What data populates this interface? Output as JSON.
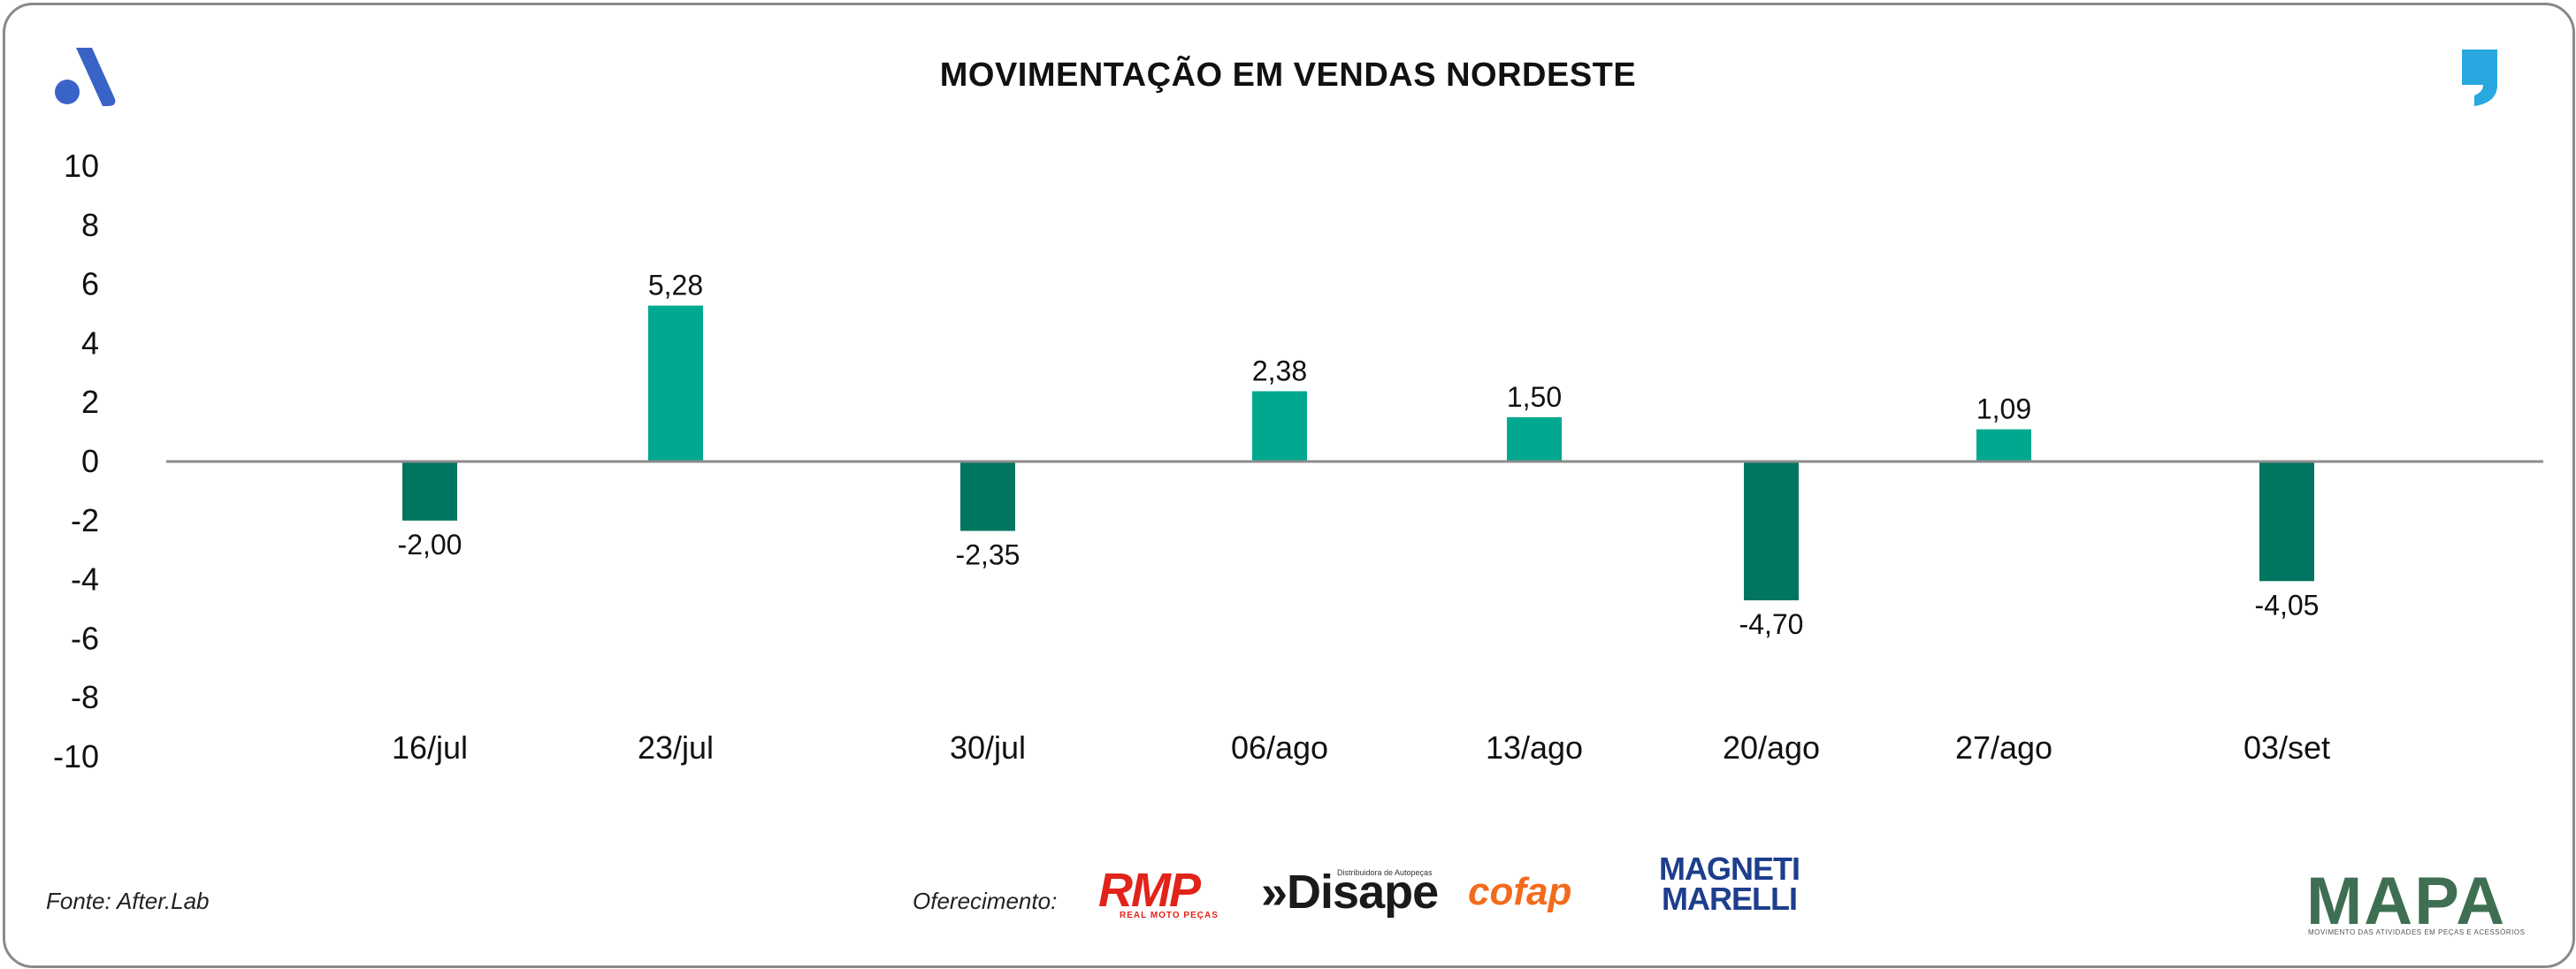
{
  "header": {
    "title": "MOVIMENTAÇÃO EM VENDAS NORDESTE"
  },
  "chart_data": {
    "type": "bar",
    "title": "MOVIMENTAÇÃO EM VENDAS NORDESTE",
    "categories": [
      "16/jul",
      "23/jul",
      "30/jul",
      "06/ago",
      "13/ago",
      "20/ago",
      "27/ago",
      "03/set"
    ],
    "values": [
      -2.0,
      5.28,
      -2.35,
      2.38,
      1.5,
      -4.7,
      1.09,
      -4.05
    ],
    "value_labels": [
      "-2,00",
      "5,28",
      "-2,35",
      "2,38",
      "1,50",
      "-4,70",
      "1,09",
      "-4,05"
    ],
    "ylim": [
      -10,
      10
    ],
    "yticks": [
      10,
      8,
      6,
      4,
      2,
      0,
      -2,
      -4,
      -6,
      -8,
      -10
    ],
    "xlabel": "",
    "ylabel": "",
    "grid": false,
    "colors": {
      "positive": "#00a88f",
      "negative": "#00755f",
      "zero_line": "#8c8c8c"
    }
  },
  "footer": {
    "source": "Fonte: After.Lab",
    "sponsor_label": "Oferecimento:",
    "sponsors": {
      "rmp": "RMP",
      "rmp_sub": "REAL MOTO PEÇAS",
      "disape": "»Disape",
      "disape_sub": "Distribuidora de Autopeças",
      "cofap": "cofap",
      "magneti_line1": "MAGNETI",
      "magneti_line2": "MARELLI"
    },
    "brand": "MAPA",
    "brand_sub": "MOVIMENTO DAS ATIVIDADES EM PEÇAS E ACESSÓRIOS"
  },
  "icons": {
    "top_left": "after-lab-a-logo-icon",
    "top_right": "quote-comma-icon"
  },
  "theme": {
    "logo_blue": "#3a63c8",
    "comma_blue": "#29a7e1"
  }
}
